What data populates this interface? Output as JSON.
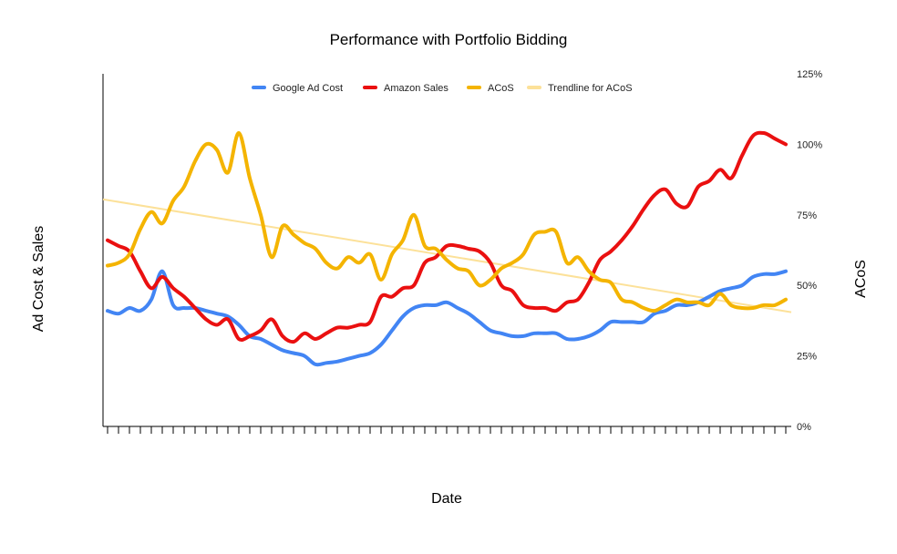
{
  "chart_data": {
    "type": "line",
    "title": "Performance with Portfolio Bidding",
    "xlabel": "Date",
    "ylabel": "Ad Cost & Sales",
    "y2label": "ACoS",
    "y2_ticks": [
      "0%",
      "25%",
      "50%",
      "75%",
      "100%",
      "125%"
    ],
    "y2lim": [
      0,
      125
    ],
    "grid": false,
    "legend_position": "top",
    "x_count": 63,
    "series": [
      {
        "name": "Google Ad Cost",
        "color": "#4285F4",
        "axis": "left",
        "values": [
          41,
          40,
          42,
          41,
          45,
          55,
          43,
          42,
          42,
          41,
          40,
          39,
          36,
          32,
          31,
          29,
          27,
          26,
          25,
          22,
          22.5,
          23,
          24,
          25,
          26,
          29,
          34,
          39,
          42,
          43,
          43,
          44,
          42,
          40,
          37,
          34,
          33,
          32,
          32,
          33,
          33,
          33,
          31,
          31,
          32,
          34,
          37,
          37,
          37,
          37,
          40,
          41,
          43,
          43,
          44,
          46,
          48,
          49,
          50,
          53,
          54,
          54,
          55
        ]
      },
      {
        "name": "Amazon Sales",
        "color": "#EA1010",
        "axis": "left",
        "values": [
          66,
          64,
          62,
          55,
          49,
          53,
          49,
          46,
          42,
          38,
          36,
          38,
          31,
          32,
          34,
          38,
          32,
          30,
          33,
          31,
          33,
          35,
          35,
          36,
          37,
          46,
          46,
          49,
          50,
          58,
          60,
          64,
          64,
          63,
          62,
          58,
          50,
          48,
          43,
          42,
          42,
          41,
          44,
          45,
          51,
          59,
          62,
          66,
          71,
          77,
          82,
          84,
          79,
          78,
          85,
          87,
          91,
          88,
          96,
          103,
          104,
          102,
          100
        ]
      },
      {
        "name": "ACoS",
        "color": "#F4B400",
        "axis": "right",
        "values": [
          57,
          58,
          61,
          70,
          76,
          72,
          80,
          85,
          94,
          100,
          98,
          90,
          104,
          88,
          75,
          60,
          71,
          68,
          65,
          63,
          58,
          56,
          60,
          58,
          61,
          52,
          61,
          66,
          75,
          64,
          63,
          59,
          56,
          55,
          50,
          52,
          56,
          58,
          61,
          68,
          69,
          69,
          58,
          60,
          55,
          52,
          51,
          45,
          44,
          42,
          41,
          43,
          45,
          44,
          44,
          43,
          47,
          43,
          42,
          42,
          43,
          43,
          45
        ]
      },
      {
        "name": "Trendline for ACoS",
        "color": "#FCE199",
        "axis": "right",
        "trend": [
          80.5,
          40.5
        ]
      }
    ]
  }
}
